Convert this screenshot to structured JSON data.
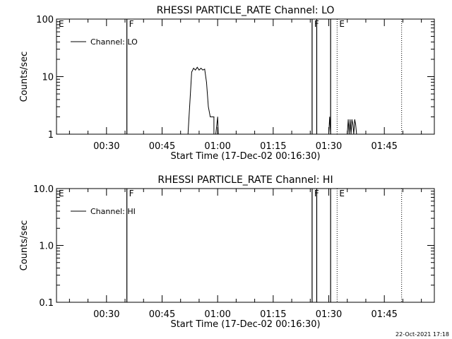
{
  "footer": {
    "timestamp": "22-Oct-2021 17:18"
  },
  "chart_data": [
    {
      "type": "line",
      "title": "RHESSI PARTICLE_RATE Channel: LO",
      "xlabel": "Start Time (17-Dec-02 00:16:30)",
      "ylabel": "Counts/sec",
      "yscale": "log",
      "xlim": [
        "00:16:30",
        "01:58:30"
      ],
      "ylim": [
        1,
        100
      ],
      "xticks": [
        "00:30",
        "00:45",
        "01:00",
        "01:15",
        "01:30",
        "01:45"
      ],
      "yticks": [
        "1",
        "10",
        "100"
      ],
      "grid": false,
      "legend_position": "top-left",
      "series": [
        {
          "name": "Channel: LO",
          "x": [
            "00:52:00",
            "00:53:00",
            "00:53:30",
            "00:54:00",
            "00:54:30",
            "00:55:00",
            "00:55:30",
            "00:56:00",
            "00:56:30",
            "00:57:00",
            "00:57:30",
            "00:58:00",
            "00:58:30",
            "00:59:00",
            "00:59:00",
            "00:59:30",
            "01:00:00",
            "01:00:10",
            "01:00:30",
            "01:00:40",
            "01:30:00",
            "01:30:15",
            "01:30:30",
            "01:35:00",
            "01:35:15",
            "01:35:30",
            "01:35:45",
            "01:36:00",
            "01:36:15",
            "01:36:30",
            "01:36:45",
            "01:37:00",
            "01:37:15",
            "01:37:30"
          ],
          "y": [
            1,
            12,
            14,
            13,
            14.5,
            13,
            14,
            13,
            13.5,
            8,
            3,
            2,
            2,
            2,
            1,
            1,
            2,
            1,
            1,
            1,
            1,
            2,
            1,
            1,
            1.8,
            1,
            1.8,
            1,
            1.8,
            1.5,
            1,
            1.8,
            1.5,
            1
          ]
        }
      ],
      "annotations": [
        {
          "text": "E",
          "x": "00:16:30",
          "style": "label"
        },
        {
          "text": "F",
          "x": "00:35:30",
          "style": "solid"
        },
        {
          "text": "F",
          "x": "01:25:30",
          "style": "solid"
        },
        {
          "text": "",
          "x": "01:26:45",
          "style": "solid"
        },
        {
          "text": "",
          "x": "01:30:30",
          "style": "solid"
        },
        {
          "text": "E",
          "x": "01:32:15",
          "style": "dotted"
        },
        {
          "text": "",
          "x": "01:49:40",
          "style": "dotted"
        }
      ]
    },
    {
      "type": "line",
      "title": "RHESSI PARTICLE_RATE Channel: HI",
      "xlabel": "Start Time (17-Dec-02 00:16:30)",
      "ylabel": "Counts/sec",
      "yscale": "log",
      "xlim": [
        "00:16:30",
        "01:58:30"
      ],
      "ylim": [
        0.1,
        10
      ],
      "xticks": [
        "00:30",
        "00:45",
        "01:00",
        "01:15",
        "01:30",
        "01:45"
      ],
      "yticks": [
        "0.1",
        "1.0",
        "10.0"
      ],
      "grid": false,
      "legend_position": "top-left",
      "series": [
        {
          "name": "Channel: HI",
          "x": [],
          "y": []
        }
      ],
      "annotations": [
        {
          "text": "E",
          "x": "00:16:30",
          "style": "label"
        },
        {
          "text": "F",
          "x": "00:35:30",
          "style": "solid"
        },
        {
          "text": "F",
          "x": "01:25:30",
          "style": "solid"
        },
        {
          "text": "",
          "x": "01:26:45",
          "style": "solid"
        },
        {
          "text": "",
          "x": "01:30:30",
          "style": "solid"
        },
        {
          "text": "E",
          "x": "01:32:15",
          "style": "dotted"
        },
        {
          "text": "",
          "x": "01:49:40",
          "style": "dotted"
        }
      ]
    }
  ]
}
